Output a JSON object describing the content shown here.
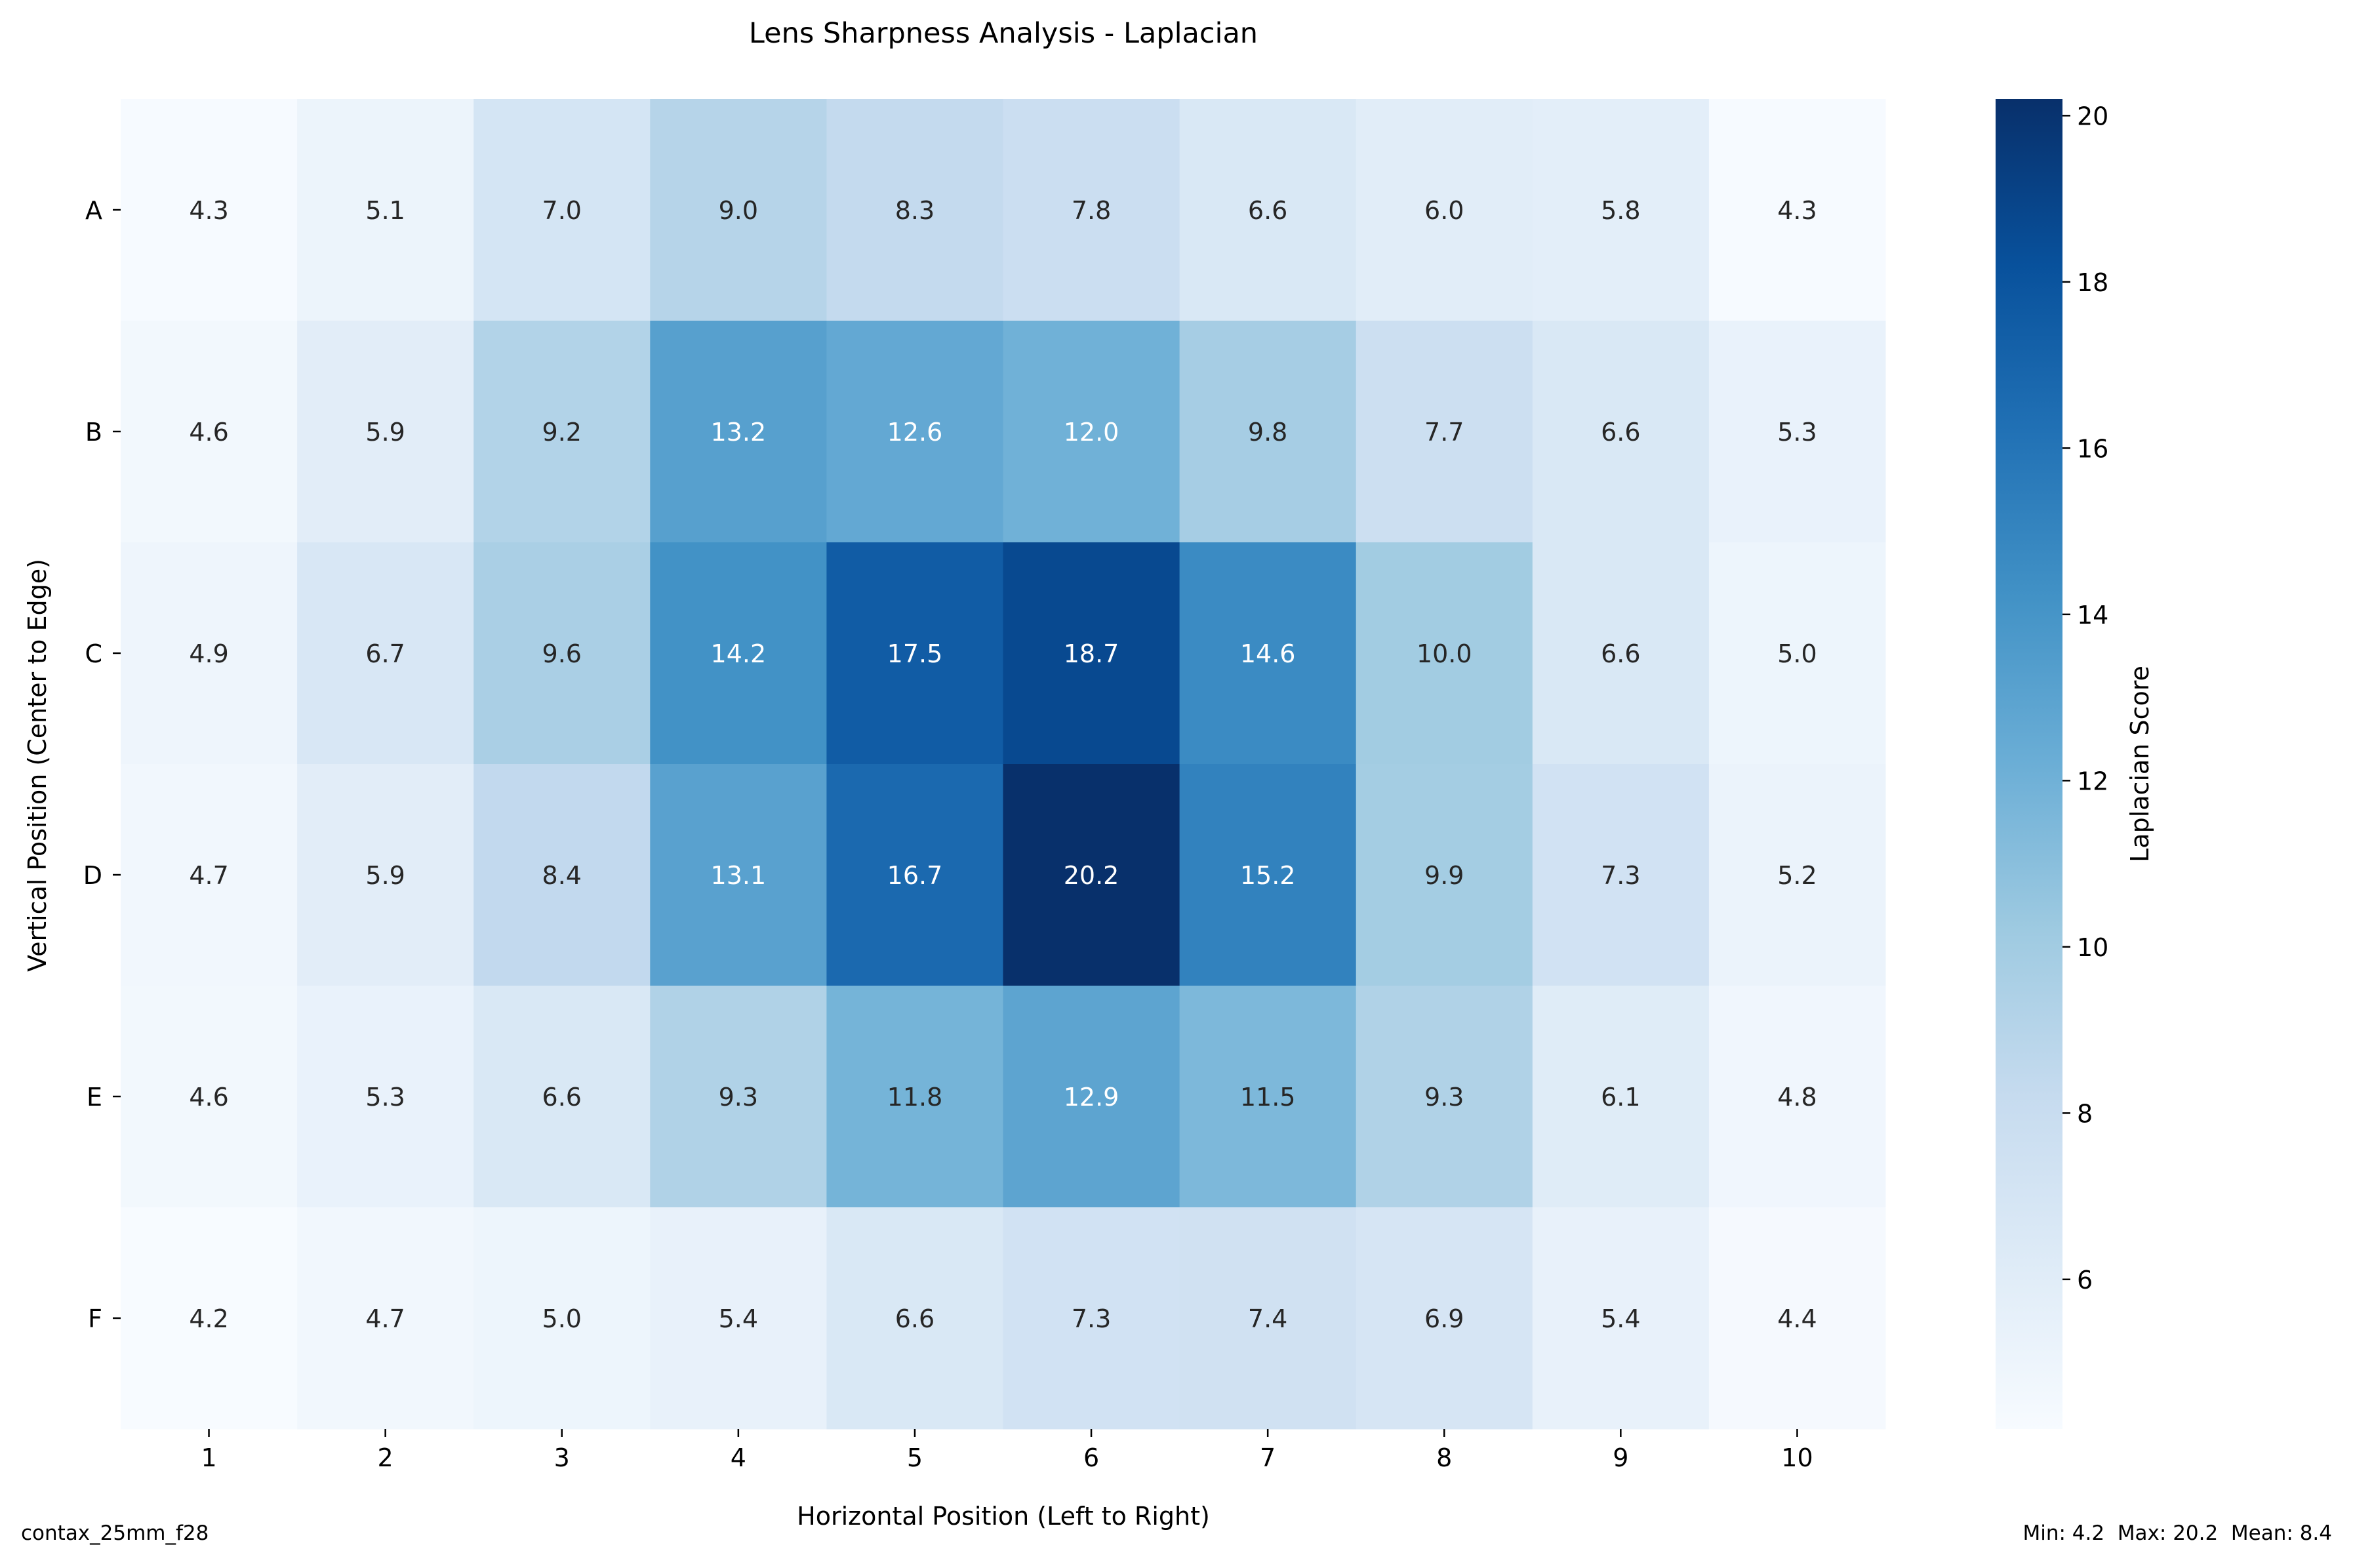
{
  "chart_data": {
    "type": "heatmap",
    "title": "Lens Sharpness Analysis - Laplacian",
    "xlabel": "Horizontal Position (Left to Right)",
    "ylabel": "Vertical Position (Center to Edge)",
    "x_categories": [
      "1",
      "2",
      "3",
      "4",
      "5",
      "6",
      "7",
      "8",
      "9",
      "10"
    ],
    "y_categories": [
      "A",
      "B",
      "C",
      "D",
      "E",
      "F"
    ],
    "values": [
      [
        4.3,
        5.1,
        7.0,
        9.0,
        8.3,
        7.8,
        6.6,
        6.0,
        5.8,
        4.3
      ],
      [
        4.6,
        5.9,
        9.2,
        13.2,
        12.6,
        12.0,
        9.8,
        7.7,
        6.6,
        5.3
      ],
      [
        4.9,
        6.7,
        9.6,
        14.2,
        17.5,
        18.7,
        14.6,
        10.0,
        6.6,
        5.0
      ],
      [
        4.7,
        5.9,
        8.4,
        13.1,
        16.7,
        20.2,
        15.2,
        9.9,
        7.3,
        5.2
      ],
      [
        4.6,
        5.3,
        6.6,
        9.3,
        11.8,
        12.9,
        11.5,
        9.3,
        6.1,
        4.8
      ],
      [
        4.2,
        4.7,
        5.0,
        5.4,
        6.6,
        7.3,
        7.4,
        6.9,
        5.4,
        4.4
      ]
    ],
    "value_format": "0.1f",
    "colormap": "Blues",
    "colormap_stops": [
      "#f7fbff",
      "#deebf7",
      "#c6dbef",
      "#9ecae1",
      "#6baed6",
      "#4292c6",
      "#2171b5",
      "#08519c",
      "#08306b"
    ],
    "color_range": [
      4.2,
      20.2
    ],
    "colorbar": {
      "label": "Laplacian Score",
      "ticks": [
        6,
        8,
        10,
        12,
        14,
        16,
        18,
        20
      ]
    },
    "grid": false,
    "legend": "colorbar-right"
  },
  "footer": {
    "left_text": "contax_25mm_f28",
    "right_text": "Min: 4.2  Max: 20.2  Mean: 8.4"
  },
  "colors": {
    "text_dark": "#262626",
    "text_light": "#ffffff",
    "axis": "#000000"
  }
}
